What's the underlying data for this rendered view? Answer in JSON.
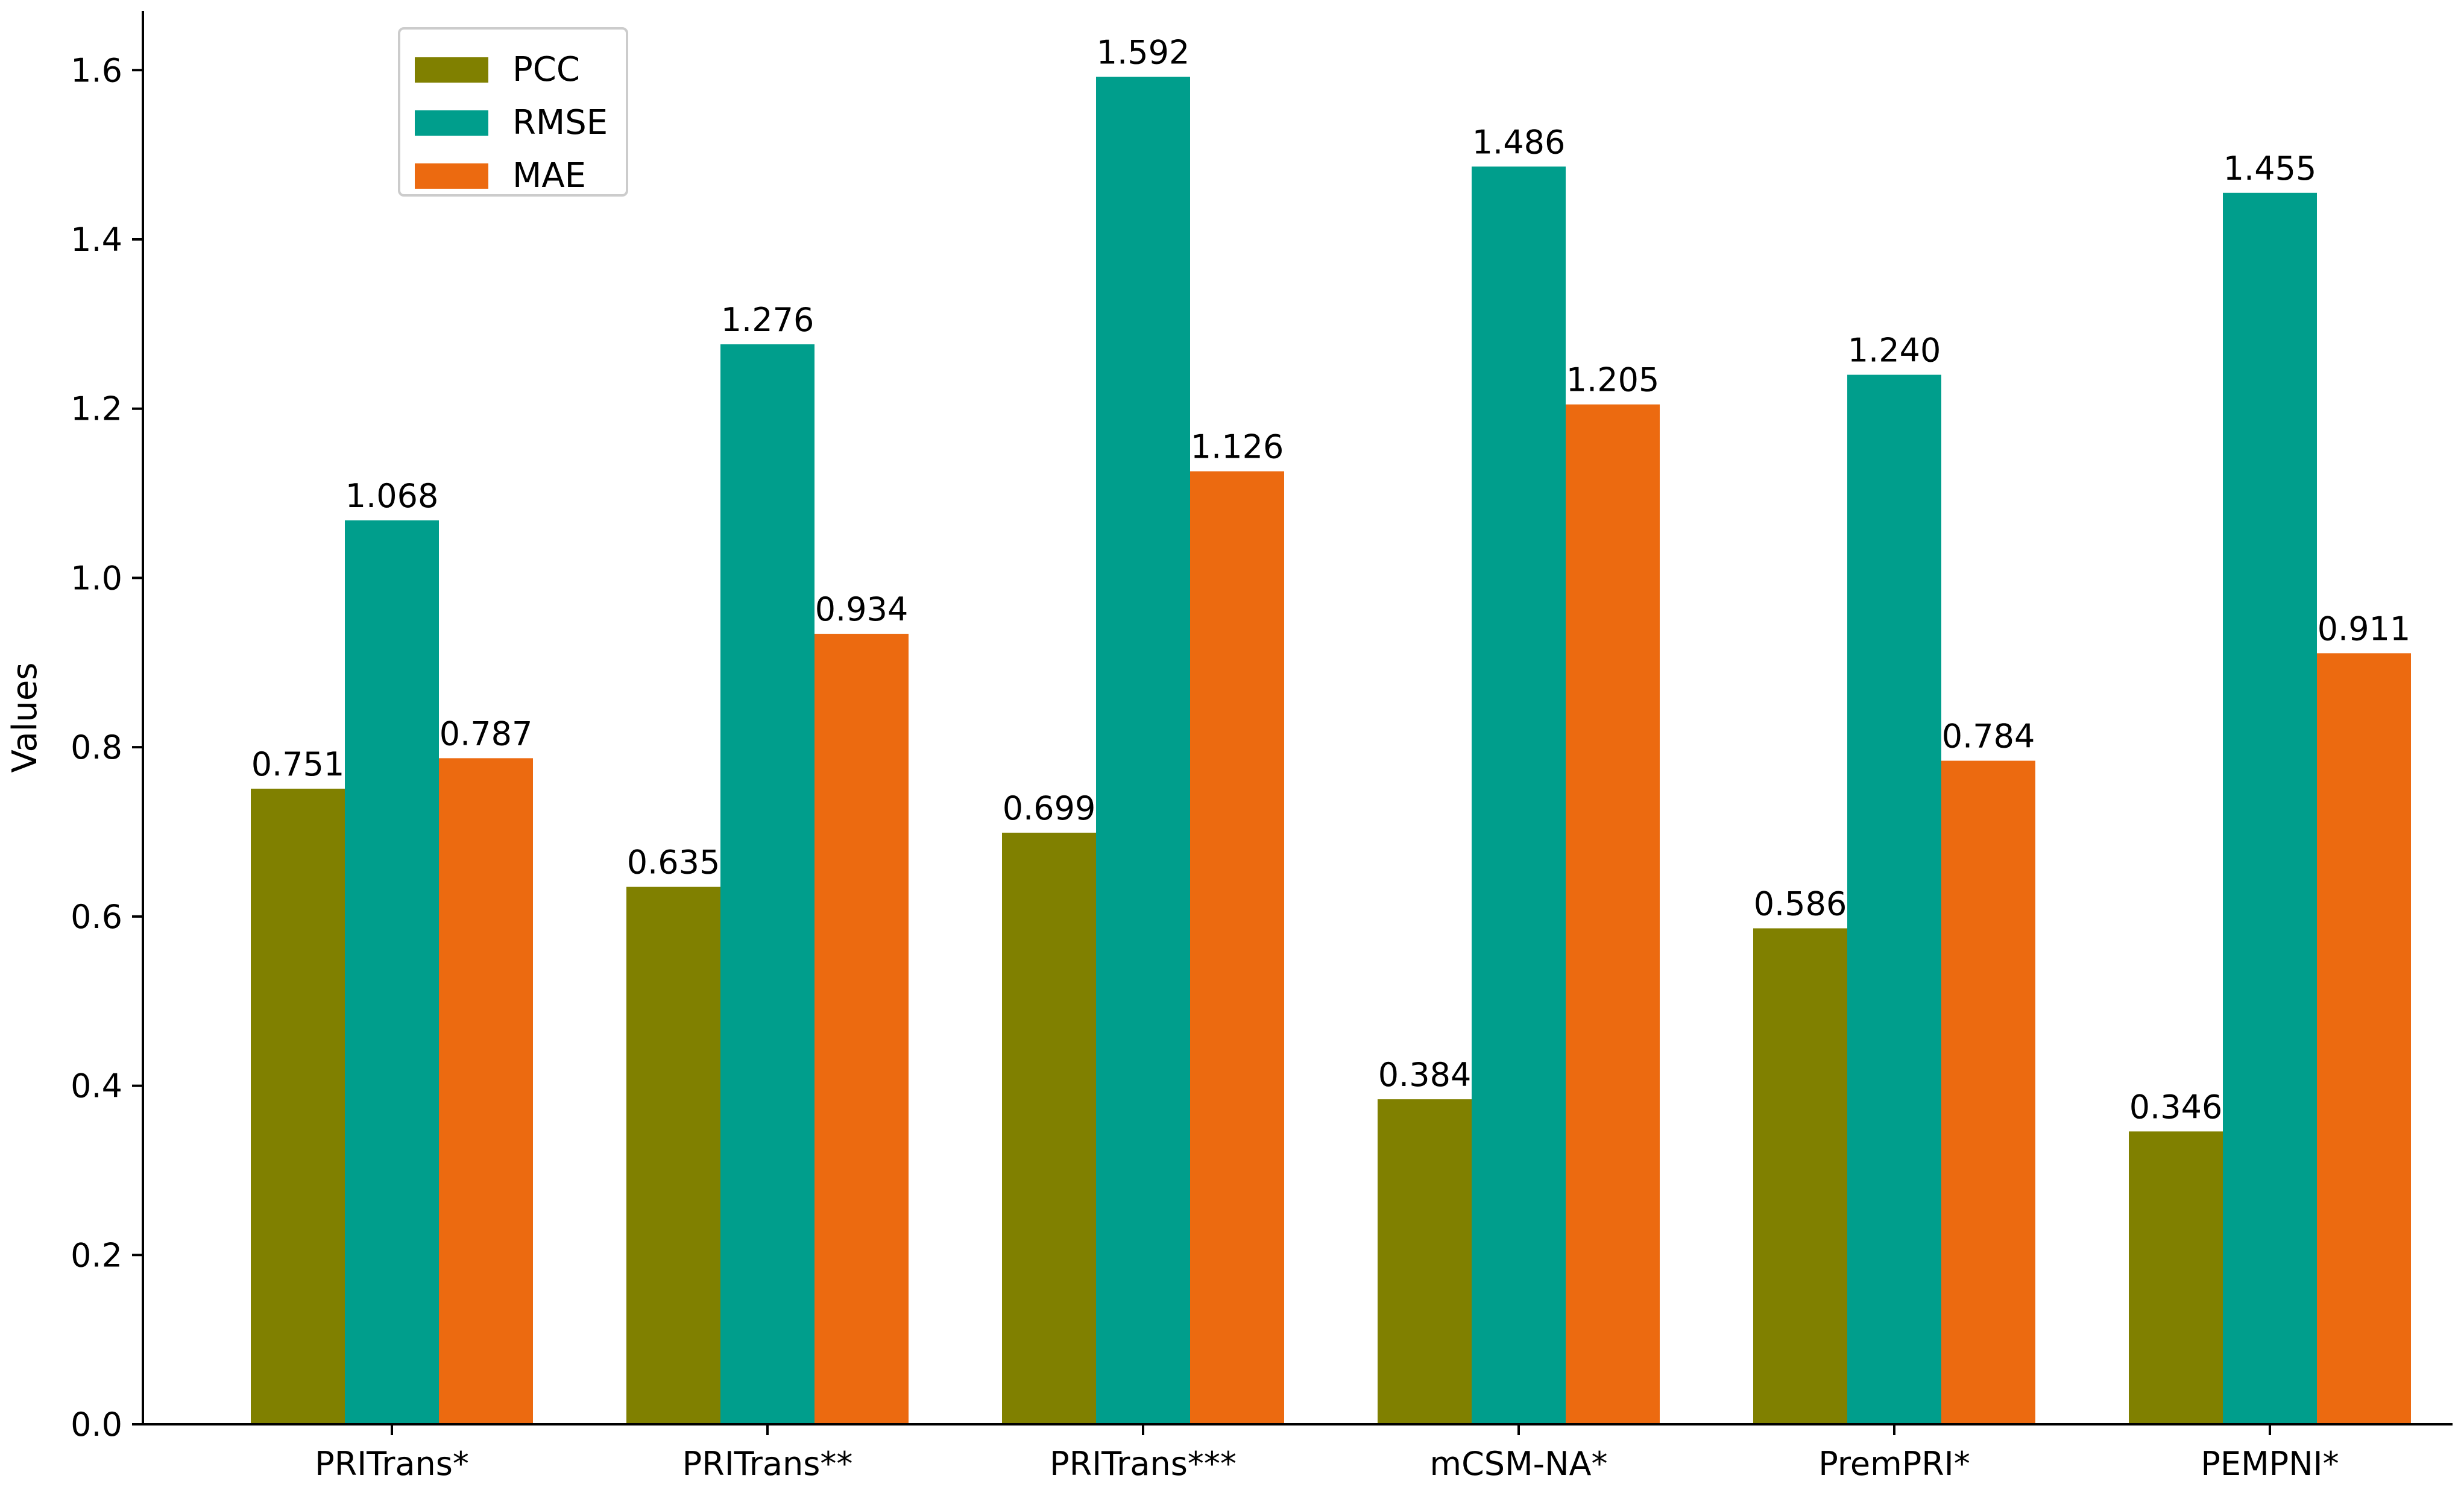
{
  "chart_data": {
    "type": "bar",
    "title": "",
    "xlabel": "",
    "ylabel": "Values",
    "ylim": [
      0,
      1.67
    ],
    "yticks": [
      0.0,
      0.2,
      0.4,
      0.6,
      0.8,
      1.0,
      1.2,
      1.4,
      1.6
    ],
    "ytick_labels": [
      "0.0",
      "0.2",
      "0.4",
      "0.6",
      "0.8",
      "1.0",
      "1.2",
      "1.4",
      "1.6"
    ],
    "grid": false,
    "legend_position": "top-left",
    "categories": [
      "PRITrans*",
      "PRITrans**",
      "PRITrans***",
      "mCSM-NA*",
      "PremPRI*",
      "PEMPNI*"
    ],
    "series": [
      {
        "name": "PCC",
        "color": "#808000",
        "values": [
          0.751,
          0.635,
          0.699,
          0.384,
          0.586,
          0.346
        ],
        "labels": [
          "0.751",
          "0.635",
          "0.699",
          "0.384",
          "0.586",
          "0.346"
        ]
      },
      {
        "name": "RMSE",
        "color": "#009e8c",
        "values": [
          1.068,
          1.276,
          1.592,
          1.486,
          1.24,
          1.455
        ],
        "labels": [
          "1.068",
          "1.276",
          "1.592",
          "1.486",
          "1.240",
          "1.455"
        ]
      },
      {
        "name": "MAE",
        "color": "#ec6a10",
        "values": [
          0.787,
          0.934,
          1.126,
          1.205,
          0.784,
          0.911
        ],
        "labels": [
          "0.787",
          "0.934",
          "1.126",
          "1.205",
          "0.784",
          "0.911"
        ]
      }
    ]
  }
}
